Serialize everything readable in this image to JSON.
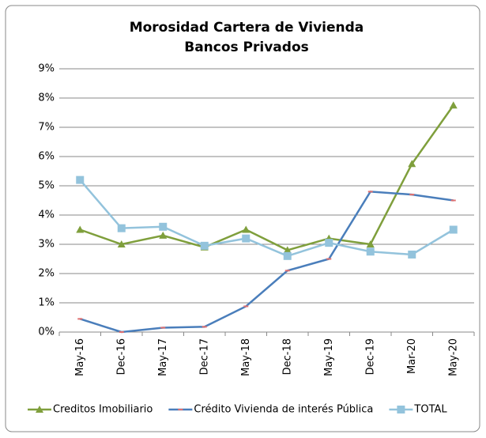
{
  "chart_data": {
    "type": "line",
    "title": "Morosidad Cartera de Vivienda",
    "subtitle": "Bancos Privados",
    "categories": [
      "May-16",
      "Dec-16",
      "May-17",
      "Dec-17",
      "May-18",
      "Dec-18",
      "May-19",
      "Dec-19",
      "Mar-20",
      "May-20"
    ],
    "series": [
      {
        "name": "Creditos Imobiliario",
        "color": "#7f9f3c",
        "marker": "triangle",
        "values": [
          3.5,
          3.0,
          3.3,
          2.9,
          3.5,
          2.8,
          3.2,
          3.0,
          5.75,
          7.75
        ]
      },
      {
        "name": "Crédito Vivienda de interés Pública",
        "color": "#4a7ebb",
        "marker": "dash",
        "values": [
          0.45,
          0.0,
          0.15,
          0.18,
          0.88,
          2.1,
          2.5,
          4.8,
          4.7,
          4.5
        ]
      },
      {
        "name": "TOTAL",
        "color": "#93c3dc",
        "marker": "square",
        "values": [
          5.2,
          3.55,
          3.6,
          2.95,
          3.2,
          2.6,
          3.05,
          2.75,
          2.65,
          3.5
        ]
      }
    ],
    "ylim": [
      0,
      9
    ],
    "yticks": [
      {
        "value": 0,
        "label": "0%"
      },
      {
        "value": 1,
        "label": "1%"
      },
      {
        "value": 2,
        "label": "2%"
      },
      {
        "value": 3,
        "label": "3%"
      },
      {
        "value": 4,
        "label": "4%"
      },
      {
        "value": 5,
        "label": "5%"
      },
      {
        "value": 6,
        "label": "6%"
      },
      {
        "value": 7,
        "label": "7%"
      },
      {
        "value": 8,
        "label": "8%"
      },
      {
        "value": 9,
        "label": "9%"
      }
    ],
    "grid": true,
    "legend": "bottom"
  }
}
